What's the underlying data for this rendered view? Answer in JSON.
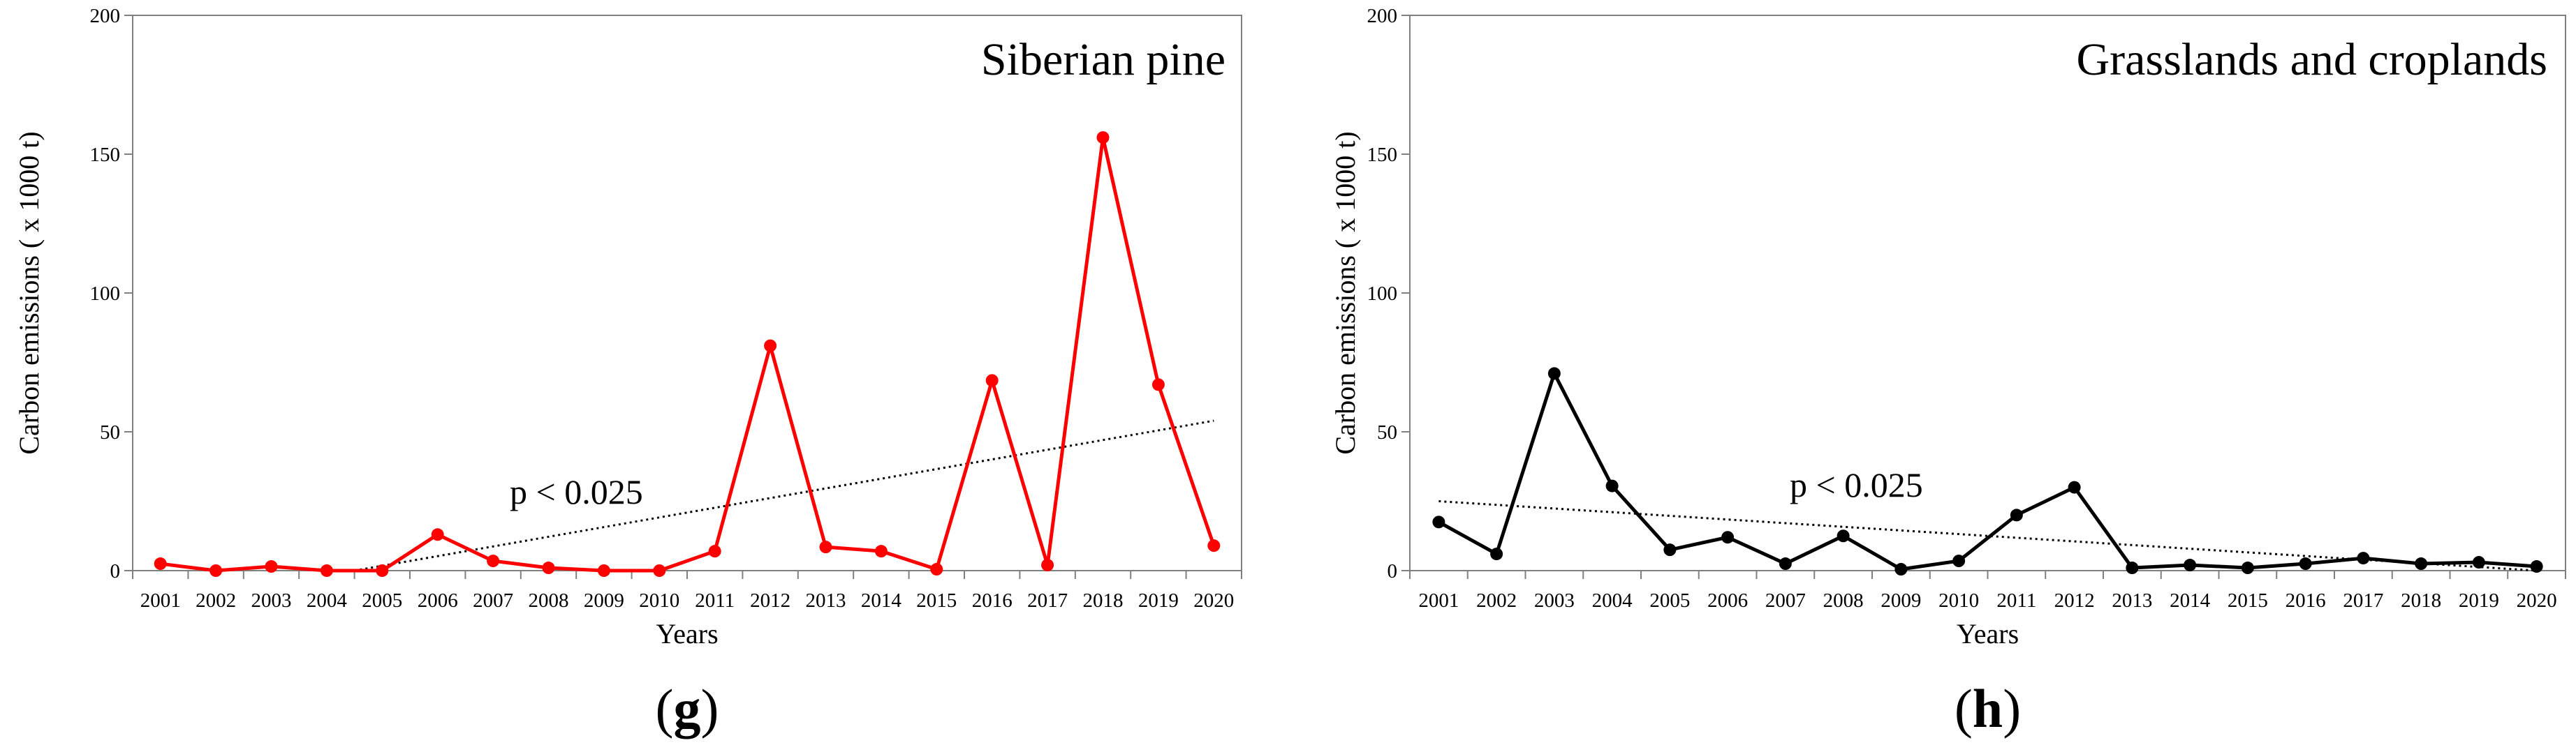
{
  "chart_data": [
    {
      "type": "line",
      "title": "Siberian pine",
      "panel_label": "g",
      "xlabel": "Years",
      "ylabel": "Carbon emissions ( x 1000 t)",
      "ylim": [
        0,
        200
      ],
      "yticks": [
        "0",
        "50",
        "100",
        "150",
        "200"
      ],
      "categories": [
        "2001",
        "2002",
        "2003",
        "2004",
        "2005",
        "2006",
        "2007",
        "2008",
        "2009",
        "2010",
        "2011",
        "2012",
        "2013",
        "2014",
        "2015",
        "2016",
        "2017",
        "2018",
        "2019",
        "2020"
      ],
      "series": [
        {
          "name": "Siberian pine",
          "color": "#ff0000",
          "values": [
            2.5,
            0,
            1.5,
            0,
            0,
            13,
            3.5,
            1,
            0,
            0,
            7,
            81,
            8.5,
            7,
            0.5,
            68.5,
            2,
            156,
            67,
            9
          ]
        }
      ],
      "trend": {
        "start": [
          4.5,
          0
        ],
        "end": [
          20,
          54
        ],
        "annotation": "p < 0.025"
      }
    },
    {
      "type": "line",
      "title": "Grasslands and croplands",
      "panel_label": "h",
      "xlabel": "Years",
      "ylabel": "Carbon emissions ( x 1000 t)",
      "ylim": [
        0,
        200
      ],
      "yticks": [
        "0",
        "50",
        "100",
        "150",
        "200"
      ],
      "categories": [
        "2001",
        "2002",
        "2003",
        "2004",
        "2005",
        "2006",
        "2007",
        "2008",
        "2009",
        "2010",
        "2011",
        "2012",
        "2013",
        "2014",
        "2015",
        "2016",
        "2017",
        "2018",
        "2019",
        "2020"
      ],
      "series": [
        {
          "name": "Grasslands and croplands",
          "color": "#000000",
          "values": [
            17.5,
            6,
            71,
            30.5,
            7.5,
            12,
            2.5,
            12.5,
            0.5,
            3.5,
            20,
            30,
            1,
            2,
            1,
            2.5,
            4.5,
            2.5,
            3,
            1.5
          ]
        }
      ],
      "trend": {
        "start": [
          1,
          25
        ],
        "end": [
          20,
          0
        ],
        "annotation": "p < 0.025"
      }
    }
  ]
}
